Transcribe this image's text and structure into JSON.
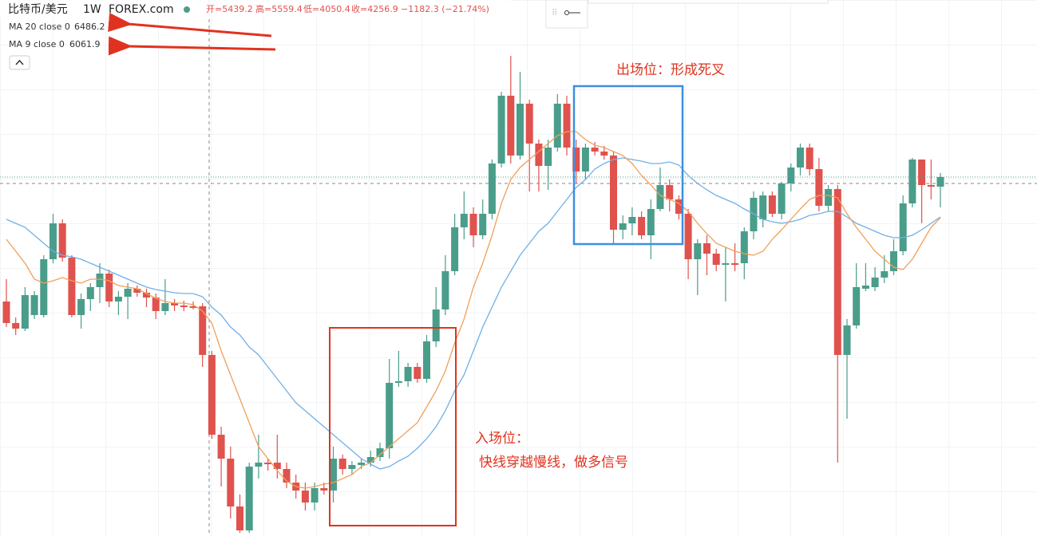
{
  "header": {
    "symbol": "比特币/美元",
    "interval": "1W",
    "exchange": "FOREX.com",
    "open": "开=5439.2",
    "high": "高=5559.4",
    "low": "低=4050.4",
    "close": "收=4256.9",
    "change": "−1182.3 (−21.74%)"
  },
  "chart_data": {
    "type": "candlestick",
    "ylim": [
      28,
      700
    ],
    "up_color": "#4a9d8a",
    "down_color": "#e0524d",
    "candles": {
      "open": [
        322,
        295,
        288,
        305,
        305,
        375,
        420,
        377,
        305,
        325,
        340,
        357,
        322,
        328,
        338,
        333,
        327,
        310,
        320,
        317,
        316,
        316,
        255,
        155,
        125,
        65,
        35,
        115,
        120,
        120,
        112,
        95,
        85,
        70,
        88,
        85,
        125,
        112,
        117,
        120,
        127,
        138,
        220,
        222,
        240,
        225,
        272,
        312,
        360,
        415,
        432,
        405,
        432,
        495,
        580,
        505,
        570,
        520,
        492,
        515,
        570,
        515,
        485,
        515,
        510,
        505,
        412,
        420,
        428,
        405,
        438,
        468,
        450,
        432,
        375,
        395,
        382,
        368,
        370,
        370,
        410,
        425,
        455,
        432,
        470,
        490,
        515,
        488,
        442,
        463,
        255,
        292,
        338,
        340,
        352,
        360,
        385,
        445,
        500,
        468,
        466
      ],
      "high": [
        350,
        302,
        340,
        335,
        380,
        432,
        425,
        380,
        332,
        345,
        370,
        362,
        335,
        345,
        342,
        338,
        332,
        350,
        325,
        323,
        322,
        320,
        260,
        165,
        140,
        80,
        120,
        155,
        125,
        155,
        120,
        105,
        95,
        95,
        95,
        140,
        130,
        122,
        125,
        135,
        145,
        250,
        260,
        245,
        245,
        280,
        340,
        380,
        432,
        460,
        440,
        450,
        500,
        585,
        630,
        610,
        575,
        525,
        525,
        582,
        580,
        525,
        520,
        522,
        517,
        510,
        430,
        440,
        435,
        450,
        490,
        475,
        455,
        438,
        400,
        405,
        388,
        390,
        395,
        415,
        460,
        460,
        460,
        472,
        495,
        520,
        520,
        502,
        468,
        468,
        300,
        370,
        370,
        365,
        380,
        400,
        455,
        502,
        500,
        500,
        483
      ],
      "low": [
        290,
        280,
        285,
        300,
        302,
        370,
        372,
        302,
        288,
        310,
        320,
        315,
        305,
        300,
        328,
        315,
        300,
        305,
        310,
        310,
        312,
        240,
        150,
        90,
        50,
        32,
        32,
        100,
        110,
        100,
        88,
        75,
        60,
        60,
        80,
        70,
        105,
        105,
        112,
        115,
        122,
        125,
        215,
        215,
        220,
        220,
        265,
        305,
        355,
        400,
        390,
        400,
        425,
        490,
        495,
        500,
        460,
        460,
        462,
        510,
        505,
        470,
        475,
        505,
        500,
        395,
        400,
        405,
        400,
        375,
        435,
        435,
        425,
        350,
        330,
        355,
        360,
        322,
        360,
        350,
        400,
        415,
        428,
        425,
        460,
        480,
        480,
        435,
        435,
        120,
        175,
        288,
        335,
        335,
        345,
        355,
        380,
        440,
        420,
        450,
        440
      ],
      "close": [
        295,
        288,
        330,
        330,
        375,
        420,
        377,
        305,
        325,
        340,
        357,
        322,
        328,
        338,
        333,
        327,
        310,
        320,
        317,
        315,
        314,
        255,
        155,
        125,
        65,
        35,
        115,
        120,
        118,
        112,
        95,
        85,
        70,
        88,
        85,
        125,
        112,
        117,
        120,
        127,
        138,
        220,
        222,
        240,
        225,
        272,
        312,
        360,
        415,
        432,
        405,
        432,
        495,
        580,
        505,
        570,
        520,
        492,
        515,
        570,
        515,
        485,
        515,
        510,
        505,
        412,
        420,
        428,
        405,
        438,
        468,
        450,
        432,
        375,
        395,
        382,
        368,
        370,
        368,
        410,
        452,
        455,
        432,
        470,
        490,
        515,
        488,
        442,
        463,
        255,
        292,
        340,
        342,
        352,
        360,
        385,
        445,
        500,
        468,
        466,
        478
      ]
    },
    "series": [
      {
        "name": "MA 20 close 0",
        "color": "#6fb0e6",
        "value_label": "6486.2",
        "values": [
          425,
          420,
          415,
          405,
          395,
          385,
          380,
          378,
          375,
          370,
          365,
          360,
          355,
          350,
          345,
          340,
          337,
          335,
          333,
          332,
          332,
          328,
          315,
          305,
          290,
          280,
          265,
          255,
          240,
          225,
          210,
          195,
          185,
          175,
          165,
          155,
          145,
          135,
          125,
          118,
          112,
          115,
          122,
          128,
          138,
          150,
          165,
          185,
          210,
          230,
          260,
          290,
          315,
          340,
          360,
          380,
          395,
          410,
          420,
          435,
          450,
          465,
          475,
          488,
          495,
          500,
          502,
          500,
          498,
          495,
          495,
          497,
          493,
          480,
          470,
          462,
          455,
          450,
          445,
          438,
          432,
          425,
          422,
          420,
          422,
          425,
          430,
          432,
          435,
          435,
          428,
          420,
          415,
          410,
          405,
          402,
          402,
          405,
          412,
          420,
          428
        ]
      },
      {
        "name": "MA 9 close 0",
        "color": "#f0a05a",
        "value_label": "6061.9",
        "values": [
          400,
          385,
          370,
          350,
          345,
          348,
          352,
          348,
          345,
          350,
          350,
          348,
          342,
          340,
          338,
          332,
          326,
          322,
          320,
          320,
          318,
          310,
          295,
          260,
          230,
          200,
          170,
          140,
          125,
          110,
          97,
          90,
          88,
          90,
          93,
          95,
          100,
          105,
          115,
          120,
          130,
          140,
          150,
          160,
          170,
          190,
          210,
          235,
          270,
          300,
          340,
          370,
          405,
          445,
          475,
          490,
          500,
          510,
          520,
          530,
          535,
          535,
          525,
          518,
          515,
          510,
          505,
          495,
          480,
          468,
          455,
          450,
          445,
          435,
          420,
          407,
          395,
          390,
          385,
          382,
          380,
          385,
          400,
          412,
          425,
          438,
          450,
          455,
          455,
          452,
          432,
          415,
          400,
          385,
          375,
          365,
          362,
          375,
          395,
          415,
          427
        ]
      }
    ],
    "annotations": {
      "exit": "出场位：形成死叉",
      "entry": "入场位：",
      "entry_note": "快线穿越慢线，做多信号"
    }
  }
}
